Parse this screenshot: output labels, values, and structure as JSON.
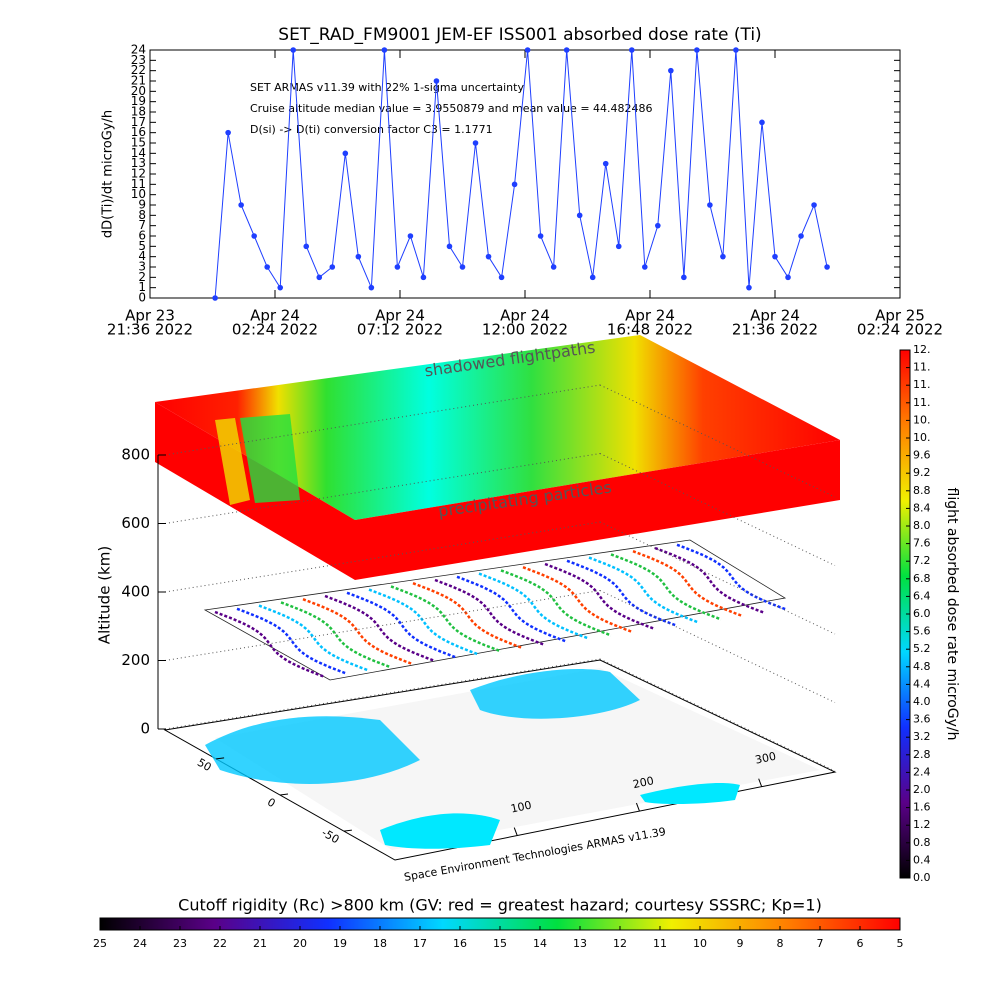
{
  "chart_data": [
    {
      "type": "line",
      "title": "SET_RAD_FM9001  JEM-EF ISS001 absorbed dose rate (Ti)",
      "y_label": "dD(Ti)/dt microGy/h",
      "annotations": [
        "SET ARMAS v11.39 with 22% 1-sigma uncertainty",
        "Cruise altitude median value = 3.9550879 and mean value = 44.482486",
        "D(si) -> D(ti) conversion factor C3 = 1.1771"
      ],
      "x": [
        "2022-04-24T00:06",
        "2022-04-24T00:36",
        "2022-04-24T01:06",
        "2022-04-24T01:36",
        "2022-04-24T02:06",
        "2022-04-24T02:36",
        "2022-04-24T03:06",
        "2022-04-24T03:36",
        "2022-04-24T04:06",
        "2022-04-24T04:36",
        "2022-04-24T05:06",
        "2022-04-24T05:36",
        "2022-04-24T06:06",
        "2022-04-24T06:36",
        "2022-04-24T07:06",
        "2022-04-24T07:36",
        "2022-04-24T08:06",
        "2022-04-24T08:36",
        "2022-04-24T09:06",
        "2022-04-24T09:36",
        "2022-04-24T10:06",
        "2022-04-24T10:36",
        "2022-04-24T11:06",
        "2022-04-24T11:36",
        "2022-04-24T12:06",
        "2022-04-24T12:36",
        "2022-04-24T13:06",
        "2022-04-24T13:36",
        "2022-04-24T14:06",
        "2022-04-24T14:36",
        "2022-04-24T15:06",
        "2022-04-24T15:36",
        "2022-04-24T16:06",
        "2022-04-24T16:36",
        "2022-04-24T17:06",
        "2022-04-24T17:36",
        "2022-04-24T18:06",
        "2022-04-24T18:36",
        "2022-04-24T19:06",
        "2022-04-24T19:36",
        "2022-04-24T20:06",
        "2022-04-24T20:36",
        "2022-04-24T21:06",
        "2022-04-24T21:36",
        "2022-04-24T22:06",
        "2022-04-24T22:36",
        "2022-04-24T23:06",
        "2022-04-24T23:36"
      ],
      "series": [
        {
          "color": "#1f3fff",
          "values": [
            0,
            16,
            9,
            6,
            3,
            1,
            24,
            5,
            2,
            3,
            14,
            4,
            1,
            24,
            3,
            6,
            2,
            21,
            5,
            3,
            15,
            4,
            2,
            11,
            24,
            6,
            3,
            24,
            8,
            2,
            13,
            5,
            24,
            3,
            7,
            22,
            2,
            24,
            9,
            4,
            24,
            1,
            17,
            4,
            2,
            6,
            9,
            3
          ]
        }
      ],
      "xlim": [
        "2022-04-23T21:36",
        "2022-04-25T02:24"
      ],
      "xticks": [
        {
          "value": "2022-04-23T21:36",
          "label": [
            "Apr 23",
            "21:36 2022"
          ]
        },
        {
          "value": "2022-04-24T02:24",
          "label": [
            "Apr 24",
            "02:24 2022"
          ]
        },
        {
          "value": "2022-04-24T07:12",
          "label": [
            "Apr 24",
            "07:12 2022"
          ]
        },
        {
          "value": "2022-04-24T12:00",
          "label": [
            "Apr 24",
            "12:00 2022"
          ]
        },
        {
          "value": "2022-04-24T16:48",
          "label": [
            "Apr 24",
            "16:48 2022"
          ]
        },
        {
          "value": "2022-04-24T21:36",
          "label": [
            "Apr 24",
            "21:36 2022"
          ]
        },
        {
          "value": "2022-04-25T02:24",
          "label": [
            "Apr 25",
            "02:24 2022"
          ]
        }
      ],
      "ylim": [
        0,
        24
      ],
      "yticks": [
        0,
        1,
        2,
        3,
        4,
        5,
        6,
        7,
        8,
        9,
        10,
        11,
        12,
        13,
        14,
        15,
        16,
        17,
        18,
        19,
        20,
        21,
        22,
        23,
        24
      ]
    },
    {
      "type": "surface3d",
      "labels": [
        "shadowed flightpaths",
        "precipitating particles"
      ],
      "z_label": "Altitude (km)",
      "zlim": [
        0,
        800
      ],
      "zticks": [
        0,
        200,
        400,
        600,
        800
      ],
      "xlim": [
        0,
        360
      ],
      "xticks": [
        100,
        200,
        300
      ],
      "ylim": [
        -90,
        90
      ],
      "yticks": [
        -50,
        0,
        50
      ],
      "footer": "Space Environment Technologies ARMAS v11.39"
    },
    {
      "type": "colorbar",
      "orientation": "vertical",
      "title": "flight absorbed dose rate microGy/h",
      "ylim": [
        0,
        12
      ],
      "yticks": [
        {
          "value": 0,
          "label": "0.0"
        },
        {
          "value": 0.4,
          "label": "0.4"
        },
        {
          "value": 0.8,
          "label": "0.8"
        },
        {
          "value": 1.2,
          "label": "1.2"
        },
        {
          "value": 1.6,
          "label": "1.6"
        },
        {
          "value": 2,
          "label": "2.0"
        },
        {
          "value": 2.4,
          "label": "2.4"
        },
        {
          "value": 2.8,
          "label": "2.8"
        },
        {
          "value": 3.2,
          "label": "3.2"
        },
        {
          "value": 3.6,
          "label": "3.6"
        },
        {
          "value": 4,
          "label": "4.0"
        },
        {
          "value": 4.4,
          "label": "4.4"
        },
        {
          "value": 4.8,
          "label": "4.8"
        },
        {
          "value": 5.2,
          "label": "5.2"
        },
        {
          "value": 5.6,
          "label": "5.6"
        },
        {
          "value": 6,
          "label": "6.0"
        },
        {
          "value": 6.4,
          "label": "6.4"
        },
        {
          "value": 6.8,
          "label": "6.8"
        },
        {
          "value": 7.2,
          "label": "7.2"
        },
        {
          "value": 7.6,
          "label": "7.6"
        },
        {
          "value": 8,
          "label": "8.0"
        },
        {
          "value": 8.4,
          "label": "8.4"
        },
        {
          "value": 8.8,
          "label": "8.8"
        },
        {
          "value": 9.2,
          "label": "9.2"
        },
        {
          "value": 9.6,
          "label": "9.6"
        },
        {
          "value": 10,
          "label": "10."
        },
        {
          "value": 10.4,
          "label": "10."
        },
        {
          "value": 10.8,
          "label": "11."
        },
        {
          "value": 11.2,
          "label": "11."
        },
        {
          "value": 11.6,
          "label": "11."
        },
        {
          "value": 12,
          "label": "12."
        }
      ],
      "colors": [
        "#000000",
        "#5a0088",
        "#1030ff",
        "#00d8ff",
        "#00e040",
        "#f0f000",
        "#ff8000",
        "#ff0000"
      ]
    },
    {
      "type": "colorbar",
      "orientation": "horizontal",
      "title": "Cutoff rigidity (Rc) >800 km (GV: red = greatest hazard; courtesy SSSRC; Kp=1)",
      "xlim": [
        25,
        5
      ],
      "xticks": [
        25,
        24,
        23,
        22,
        21,
        20,
        19,
        18,
        17,
        16,
        15,
        14,
        13,
        12,
        11,
        10,
        9,
        8,
        7,
        6,
        5
      ],
      "colors": [
        "#000000",
        "#5a0088",
        "#1030ff",
        "#00d8ff",
        "#00e040",
        "#f0f000",
        "#ff8000",
        "#ff0000"
      ]
    }
  ]
}
